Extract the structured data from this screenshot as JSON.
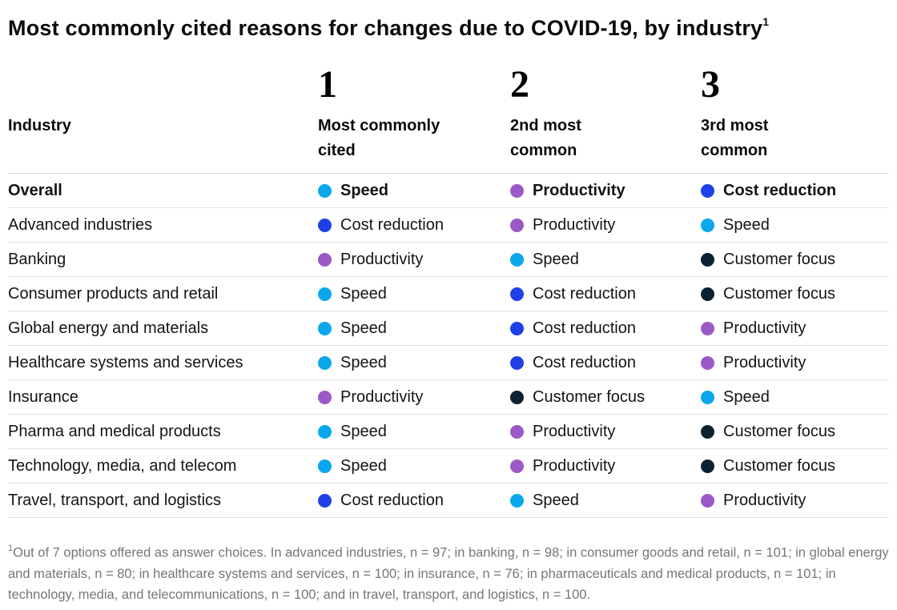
{
  "chart_data": {
    "type": "table",
    "title": "Most commonly cited reasons for changes due to COVID-19, by industry",
    "title_superscript": "1",
    "industry_header": "Industry",
    "columns": [
      {
        "rank": "1",
        "label": "Most commonly\ncited"
      },
      {
        "rank": "2",
        "label": "2nd most\ncommon"
      },
      {
        "rank": "3",
        "label": "3rd most\ncommon"
      }
    ],
    "legend_colors": {
      "speed": "#0ba7ec",
      "cost_reduction": "#1f40e6",
      "productivity": "#9b59c6",
      "customer_focus": "#0d2231"
    },
    "rows": [
      {
        "industry": "Overall",
        "values": [
          {
            "key": "speed",
            "label": "Speed"
          },
          {
            "key": "productivity",
            "label": "Productivity"
          },
          {
            "key": "cost_reduction",
            "label": "Cost reduction"
          }
        ]
      },
      {
        "industry": "Advanced industries",
        "values": [
          {
            "key": "cost_reduction",
            "label": "Cost reduction"
          },
          {
            "key": "productivity",
            "label": "Productivity"
          },
          {
            "key": "speed",
            "label": "Speed"
          }
        ]
      },
      {
        "industry": "Banking",
        "values": [
          {
            "key": "productivity",
            "label": "Productivity"
          },
          {
            "key": "speed",
            "label": "Speed"
          },
          {
            "key": "customer_focus",
            "label": "Customer focus"
          }
        ]
      },
      {
        "industry": "Consumer products and retail",
        "values": [
          {
            "key": "speed",
            "label": "Speed"
          },
          {
            "key": "cost_reduction",
            "label": "Cost reduction"
          },
          {
            "key": "customer_focus",
            "label": "Customer focus"
          }
        ]
      },
      {
        "industry": "Global energy and materials",
        "values": [
          {
            "key": "speed",
            "label": "Speed"
          },
          {
            "key": "cost_reduction",
            "label": "Cost reduction"
          },
          {
            "key": "productivity",
            "label": "Productivity"
          }
        ]
      },
      {
        "industry": "Healthcare systems and services",
        "values": [
          {
            "key": "speed",
            "label": "Speed"
          },
          {
            "key": "cost_reduction",
            "label": "Cost reduction"
          },
          {
            "key": "productivity",
            "label": "Productivity"
          }
        ]
      },
      {
        "industry": "Insurance",
        "values": [
          {
            "key": "productivity",
            "label": "Productivity"
          },
          {
            "key": "customer_focus",
            "label": "Customer focus"
          },
          {
            "key": "speed",
            "label": "Speed"
          }
        ]
      },
      {
        "industry": "Pharma and medical products",
        "values": [
          {
            "key": "speed",
            "label": "Speed"
          },
          {
            "key": "productivity",
            "label": "Productivity"
          },
          {
            "key": "customer_focus",
            "label": "Customer focus"
          }
        ]
      },
      {
        "industry": "Technology, media, and telecom",
        "values": [
          {
            "key": "speed",
            "label": "Speed"
          },
          {
            "key": "productivity",
            "label": "Productivity"
          },
          {
            "key": "customer_focus",
            "label": "Customer focus"
          }
        ]
      },
      {
        "industry": "Travel, transport, and logistics",
        "values": [
          {
            "key": "cost_reduction",
            "label": "Cost reduction"
          },
          {
            "key": "speed",
            "label": "Speed"
          },
          {
            "key": "productivity",
            "label": "Productivity"
          }
        ]
      }
    ],
    "footnote_superscript": "1",
    "footnote": "Out of 7 options offered as answer choices. In advanced industries, n = 97; in banking, n = 98; in consumer goods and retail, n = 101; in global energy and materials, n = 80; in healthcare systems and services, n = 100; in insurance, n = 76; in pharmaceuticals and medical products, n = 101; in technology, media, and telecommunications, n = 100; and in travel, transport, and logistics, n = 100."
  }
}
